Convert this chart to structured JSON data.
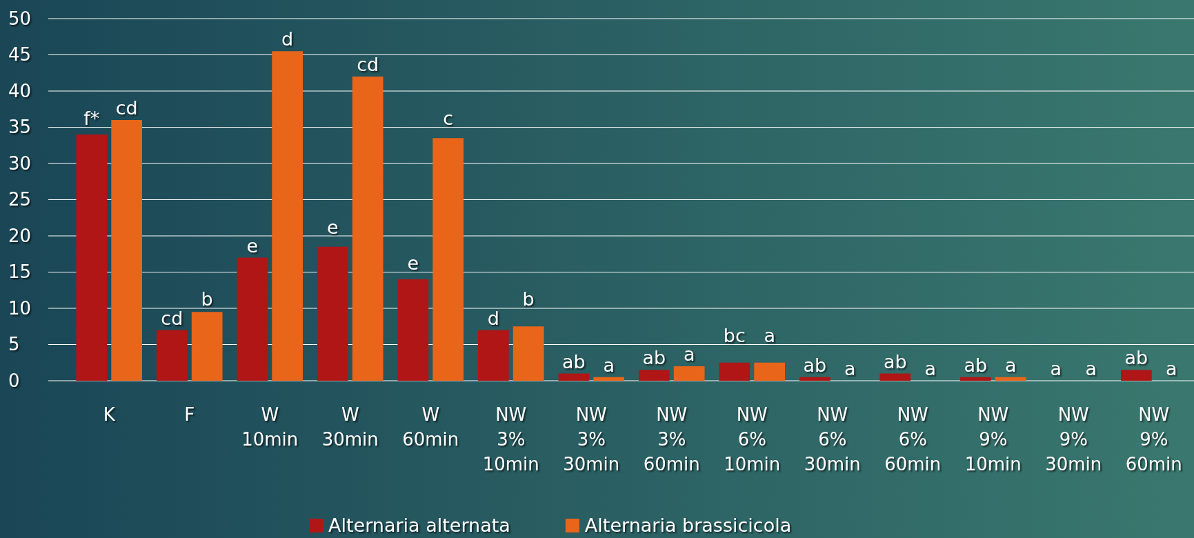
{
  "chart_data": {
    "type": "bar",
    "categories": [
      "K",
      "F",
      "W\n10min",
      "W\n30min",
      "W\n60min",
      "NW\n3%\n10min",
      "NW\n3%\n30min",
      "NW\n3%\n60min",
      "NW\n6%\n10min",
      "NW\n6%\n30min",
      "NW\n6%\n60min",
      "NW\n9%\n10min",
      "NW\n9%\n30min",
      "NW\n9%\n60min"
    ],
    "series": [
      {
        "name": "Alternaria alternata",
        "color": "#b01616",
        "values": [
          34,
          7,
          17,
          18.5,
          14,
          7,
          1,
          1.5,
          2.5,
          0.5,
          1,
          0.5,
          0,
          1.5
        ]
      },
      {
        "name": "Alternaria brassicicola",
        "color": "#e8651a",
        "values": [
          36,
          9.5,
          45.5,
          42,
          33.5,
          7.5,
          0.5,
          2,
          2.5,
          0,
          0,
          0.5,
          0,
          0
        ]
      }
    ],
    "ylim": [
      0,
      50
    ],
    "yticks": [
      0,
      5,
      10,
      15,
      20,
      25,
      30,
      35,
      40,
      45,
      50
    ],
    "grid": "y",
    "legend": "bottom",
    "annotations": [
      {
        "text": "f*",
        "x": "K",
        "y": 34
      },
      {
        "text": "cd",
        "x": "K",
        "y": 36
      },
      {
        "text": "cd",
        "x": "F",
        "y": 7
      },
      {
        "text": "b",
        "x": "F",
        "y": 9.5
      },
      {
        "text": "e",
        "x": "W\n10min",
        "y": 17
      },
      {
        "text": "d",
        "x": "W\n10min",
        "y": 45.5
      },
      {
        "text": "e",
        "x": "W\n30min",
        "y": 18.5
      },
      {
        "text": "cd",
        "x": "W\n30min",
        "y": 42
      },
      {
        "text": "e",
        "x": "W\n60min",
        "y": 14
      },
      {
        "text": "c",
        "x": "W\n60min",
        "y": 33.5
      },
      {
        "text": "d",
        "x": "NW\n3%\n10min",
        "y": 7
      },
      {
        "text": "b",
        "x": "NW\n3%\n10min",
        "y": 7.5
      },
      {
        "text": "ab",
        "x": "NW\n3%\n30min",
        "y": 1
      },
      {
        "text": "a",
        "x": "NW\n3%\n30min",
        "y": 0.5
      },
      {
        "text": "ab",
        "x": "NW\n3%\n60min",
        "y": 1.5
      },
      {
        "text": "a",
        "x": "NW\n3%\n60min",
        "y": 2
      },
      {
        "text": "bc",
        "x": "NW\n6%\n10min",
        "y": 2.5
      },
      {
        "text": "a",
        "x": "NW\n6%\n10min",
        "y": 2.5
      },
      {
        "text": "ab",
        "x": "NW\n6%\n30min",
        "y": 0.5
      },
      {
        "text": "a",
        "x": "NW\n6%\n30min",
        "y": 0
      },
      {
        "text": "ab",
        "x": "NW\n6%\n60min",
        "y": 1
      },
      {
        "text": "a",
        "x": "NW\n6%\n60min",
        "y": 0
      },
      {
        "text": "ab",
        "x": "NW\n9%\n10min",
        "y": 0.5
      },
      {
        "text": "a",
        "x": "NW\n9%\n10min",
        "y": 0.5
      },
      {
        "text": "a",
        "x": "NW\n9%\n30min",
        "y": 0
      },
      {
        "text": "a",
        "x": "NW\n9%\n30min",
        "y": 0
      },
      {
        "text": "ab",
        "x": "NW\n9%\n60min",
        "y": 1.5
      },
      {
        "text": "a",
        "x": "NW\n9%\n60min",
        "y": 0
      }
    ]
  }
}
